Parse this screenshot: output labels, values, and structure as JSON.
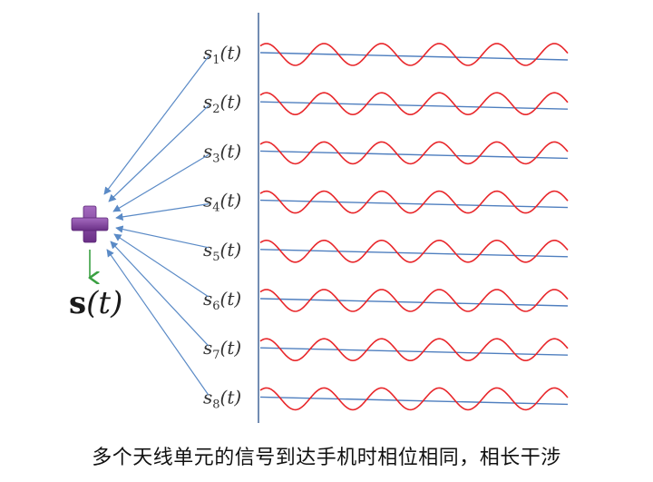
{
  "colors": {
    "wave": "#e8262a",
    "baseline": "#4f7fbf",
    "arrow": "#5a8ac6",
    "axis": "#4f6f9f",
    "plus": "#7a3f95",
    "down_arrow": "#3aa042"
  },
  "signals": [
    {
      "base": "s",
      "sub": "1",
      "arg": "(t)"
    },
    {
      "base": "s",
      "sub": "2",
      "arg": "(t)"
    },
    {
      "base": "s",
      "sub": "3",
      "arg": "(t)"
    },
    {
      "base": "s",
      "sub": "4",
      "arg": "(t)"
    },
    {
      "base": "s",
      "sub": "5",
      "arg": "(t)"
    },
    {
      "base": "s",
      "sub": "6",
      "arg": "(t)"
    },
    {
      "base": "s",
      "sub": "7",
      "arg": "(t)"
    },
    {
      "base": "s",
      "sub": "8",
      "arg": "(t)"
    }
  ],
  "sum": {
    "bold": "s",
    "arg": "(t)"
  },
  "caption": "多个天线单元的信号到达手机时相位相同，相长干涉"
}
